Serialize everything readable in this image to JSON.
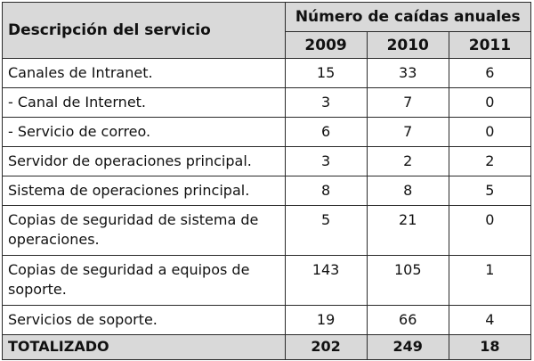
{
  "table": {
    "header": {
      "description_label": "Descripción del servicio",
      "group_label": "Número de caídas anuales",
      "years": [
        "2009",
        "2010",
        "2011"
      ]
    },
    "rows": [
      {
        "label": "Canales de Intranet.",
        "values": [
          "15",
          "33",
          "6"
        ]
      },
      {
        "label": "- Canal de Internet.",
        "values": [
          "3",
          "7",
          "0"
        ]
      },
      {
        "label": "- Servicio de correo.",
        "values": [
          "6",
          "7",
          "0"
        ]
      },
      {
        "label": "Servidor de operaciones principal.",
        "values": [
          "3",
          "2",
          "2"
        ]
      },
      {
        "label": "Sistema de operaciones principal.",
        "values": [
          "8",
          "8",
          "5"
        ]
      },
      {
        "label": "Copias de seguridad de sistema de operaciones.",
        "values": [
          "5",
          "21",
          "0"
        ]
      },
      {
        "label": "Copias de seguridad a equipos de soporte.",
        "values": [
          "143",
          "105",
          "1"
        ]
      },
      {
        "label": "Servicios de soporte.",
        "values": [
          "19",
          "66",
          "4"
        ]
      }
    ],
    "total": {
      "label": "TOTALIZADO",
      "values": [
        "202",
        "249",
        "18"
      ]
    }
  }
}
